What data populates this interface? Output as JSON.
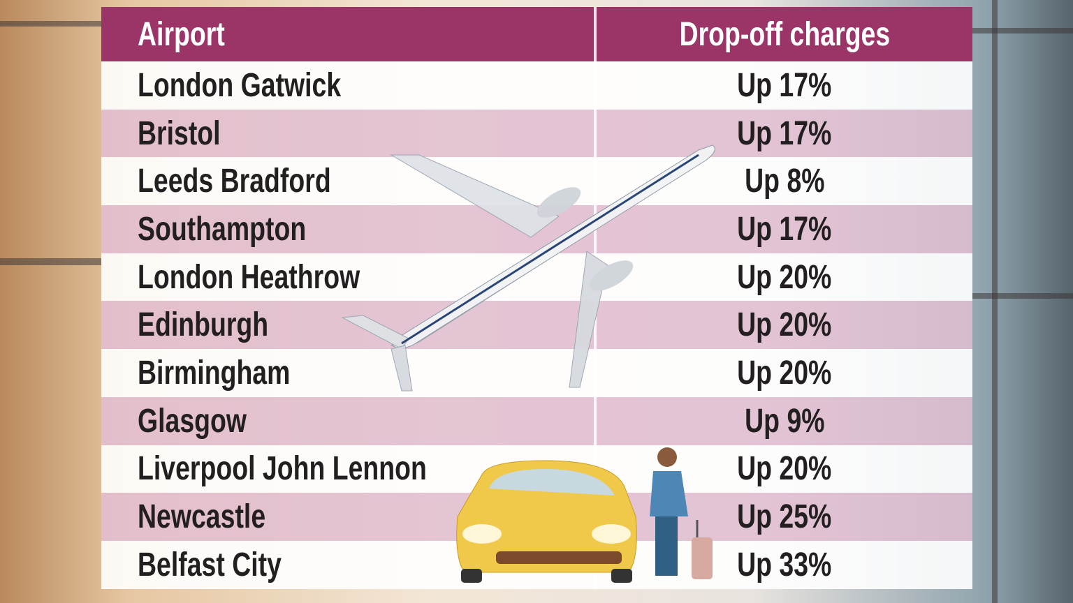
{
  "table": {
    "header": [
      "Airport",
      "Drop-off charges"
    ],
    "rows": [
      [
        "London Gatwick",
        "Up 17%"
      ],
      [
        "Bristol",
        "Up 17%"
      ],
      [
        "Leeds Bradford",
        "Up 8%"
      ],
      [
        "Southampton",
        "Up 17%"
      ],
      [
        "London Heathrow",
        "Up 20%"
      ],
      [
        "Edinburgh",
        "Up 20%"
      ],
      [
        "Birmingham",
        "Up 20%"
      ],
      [
        "Glasgow",
        "Up 9%"
      ],
      [
        "Liverpool John Lennon",
        "Up 20%"
      ],
      [
        "Newcastle",
        "Up 25%"
      ],
      [
        "Belfast City",
        "Up 33%"
      ]
    ]
  }
}
